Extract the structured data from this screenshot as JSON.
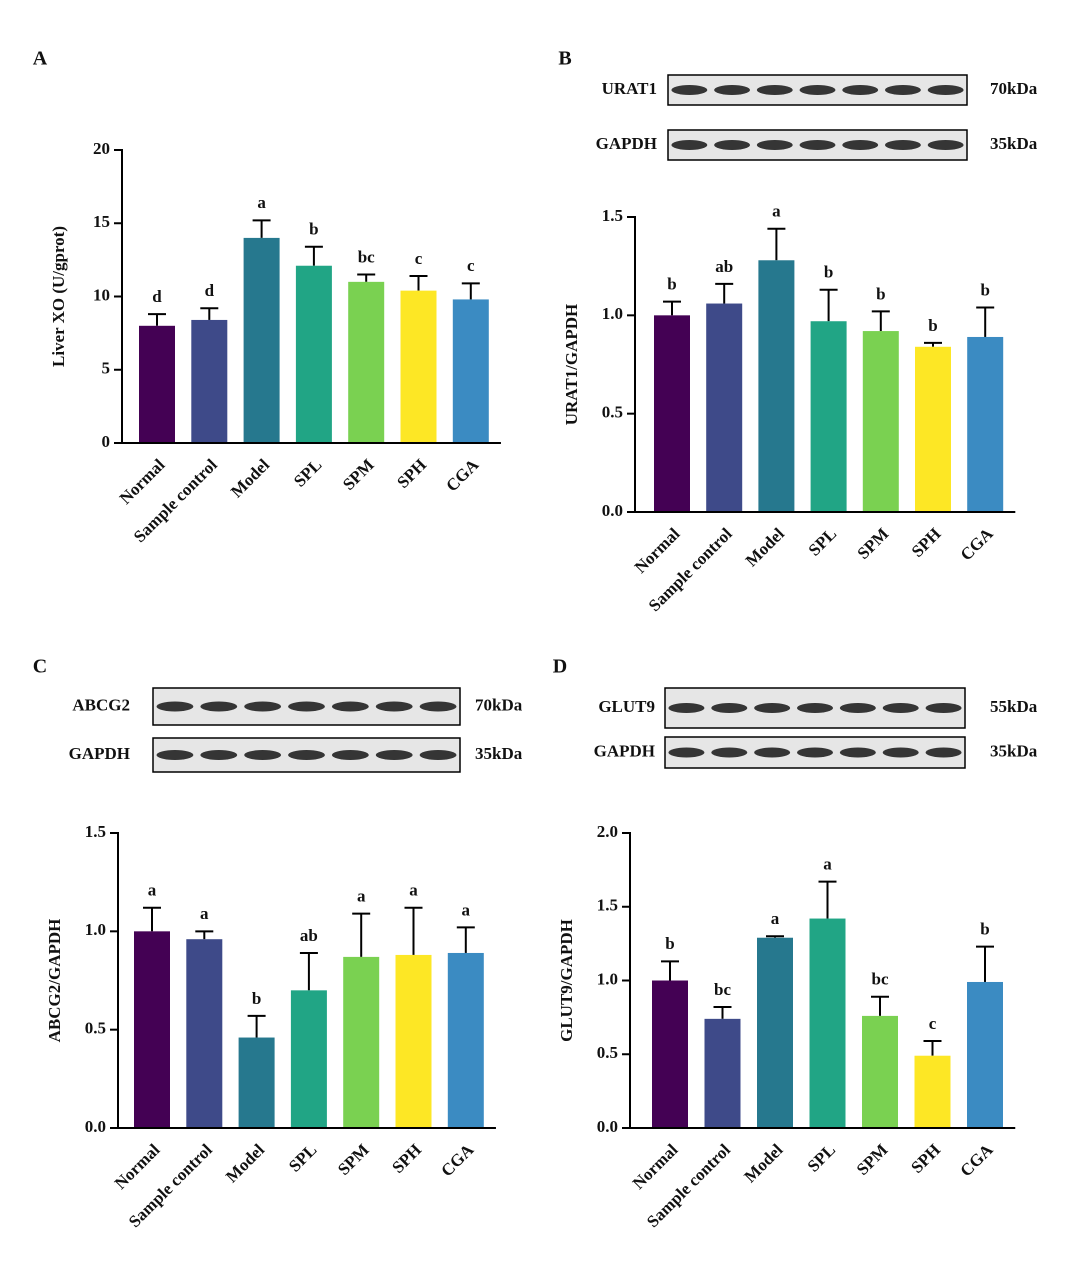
{
  "chart_data": [
    {
      "type": "bar",
      "panel": "A",
      "ylabel": "Liver XO (U/gprot)",
      "categories": [
        "Normal",
        "Sample control",
        "Model",
        "SPL",
        "SPM",
        "SPH",
        "CGA"
      ],
      "values": [
        8.0,
        8.4,
        14.0,
        12.1,
        11.0,
        10.4,
        9.8
      ],
      "errors": [
        0.8,
        0.8,
        1.2,
        1.3,
        0.5,
        1.0,
        1.1
      ],
      "annotations": [
        "d",
        "d",
        "a",
        "b",
        "bc",
        "c",
        "c"
      ],
      "colors": [
        "#440154",
        "#3e4a89",
        "#26788e",
        "#21a585",
        "#7ad151",
        "#fde725",
        "#3b8bc2"
      ],
      "ylim": [
        0,
        20
      ],
      "yticks": [
        0,
        5,
        10,
        15,
        20
      ]
    },
    {
      "type": "bar",
      "panel": "B",
      "ylabel": "URAT1/GAPDH",
      "blot": [
        {
          "protein": "URAT1",
          "size": "70kDa"
        },
        {
          "protein": "GAPDH",
          "size": "35kDa"
        }
      ],
      "categories": [
        "Normal",
        "Sample control",
        "Model",
        "SPL",
        "SPM",
        "SPH",
        "CGA"
      ],
      "values": [
        1.0,
        1.06,
        1.28,
        0.97,
        0.92,
        0.84,
        0.89
      ],
      "errors": [
        0.07,
        0.1,
        0.16,
        0.16,
        0.1,
        0.02,
        0.15
      ],
      "annotations": [
        "b",
        "ab",
        "a",
        "b",
        "b",
        "b",
        "b"
      ],
      "colors": [
        "#440154",
        "#3e4a89",
        "#26788e",
        "#21a585",
        "#7ad151",
        "#fde725",
        "#3b8bc2"
      ],
      "ylim": [
        0,
        1.5
      ],
      "yticks": [
        {
          "value": 0,
          "label": "0.0"
        },
        0.5,
        {
          "value": 1,
          "label": "1.0"
        },
        1.5
      ]
    },
    {
      "type": "bar",
      "panel": "C",
      "ylabel": "ABCG2/GAPDH",
      "blot": [
        {
          "protein": "ABCG2",
          "size": "70kDa"
        },
        {
          "protein": "GAPDH",
          "size": "35kDa"
        }
      ],
      "categories": [
        "Normal",
        "Sample control",
        "Model",
        "SPL",
        "SPM",
        "SPH",
        "CGA"
      ],
      "values": [
        1.0,
        0.96,
        0.46,
        0.7,
        0.87,
        0.88,
        0.89
      ],
      "errors": [
        0.12,
        0.04,
        0.11,
        0.19,
        0.22,
        0.24,
        0.13
      ],
      "annotations": [
        "a",
        "a",
        "b",
        "ab",
        "a",
        "a",
        "a"
      ],
      "colors": [
        "#440154",
        "#3e4a89",
        "#26788e",
        "#21a585",
        "#7ad151",
        "#fde725",
        "#3b8bc2"
      ],
      "ylim": [
        0,
        1.5
      ],
      "yticks": [
        {
          "value": 0,
          "label": "0.0"
        },
        0.5,
        {
          "value": 1,
          "label": "1.0"
        },
        1.5
      ]
    },
    {
      "type": "bar",
      "panel": "D",
      "ylabel": "GLUT9/GAPDH",
      "blot": [
        {
          "protein": "GLUT9",
          "size": "55kDa"
        },
        {
          "protein": "GAPDH",
          "size": "35kDa"
        }
      ],
      "categories": [
        "Normal",
        "Sample control",
        "Model",
        "SPL",
        "SPM",
        "SPH",
        "CGA"
      ],
      "values": [
        1.0,
        0.74,
        1.29,
        1.42,
        0.76,
        0.49,
        0.99
      ],
      "errors": [
        0.13,
        0.08,
        0.01,
        0.25,
        0.13,
        0.1,
        0.24
      ],
      "annotations": [
        "b",
        "bc",
        "a",
        "a",
        "bc",
        "c",
        "b"
      ],
      "colors": [
        "#440154",
        "#3e4a89",
        "#26788e",
        "#21a585",
        "#7ad151",
        "#fde725",
        "#3b8bc2"
      ],
      "ylim": [
        0,
        2
      ],
      "yticks": [
        {
          "value": 0,
          "label": "0.0"
        },
        0.5,
        {
          "value": 1,
          "label": "1.0"
        },
        1.5,
        {
          "value": 2,
          "label": "2.0"
        }
      ]
    }
  ]
}
